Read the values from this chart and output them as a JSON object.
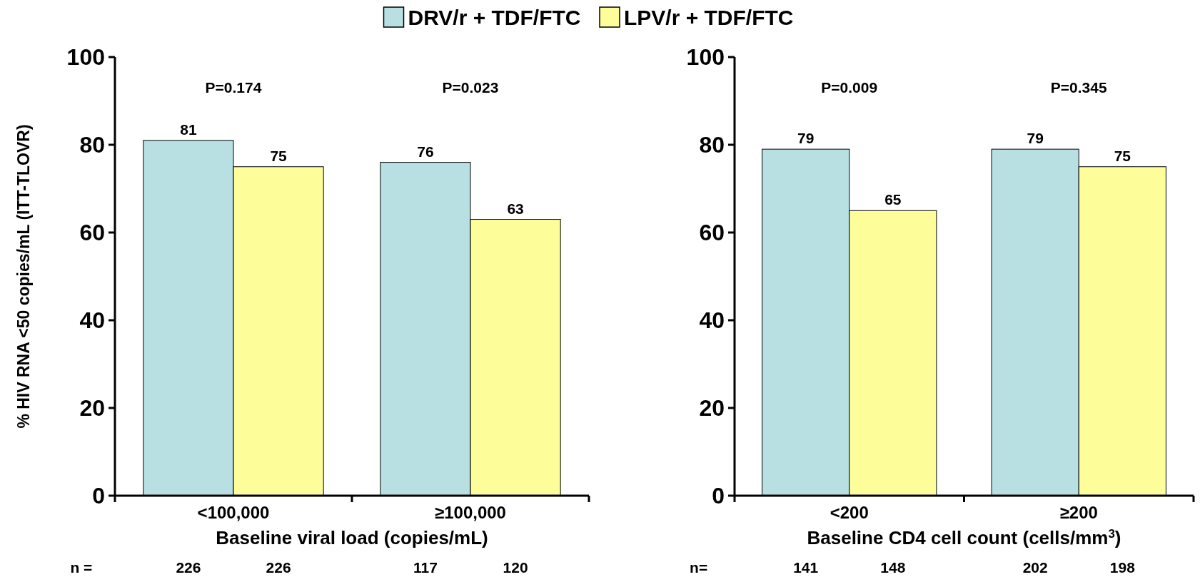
{
  "chart_data": [
    {
      "type": "bar",
      "ylabel": "% HIV RNA <50 copies/mL (ITT-TLOVR)",
      "xlabel": "Baseline viral load (copies/mL)",
      "categories": [
        "<100,000",
        "≥100,000"
      ],
      "ylim": [
        0,
        100
      ],
      "yticks": [
        0,
        20,
        40,
        60,
        80,
        100
      ],
      "data_labels": true,
      "legend": "top",
      "series": [
        {
          "name": "DRV/r + TDF/FTC",
          "color": "#b8e0e2",
          "values": [
            81,
            76
          ]
        },
        {
          "name": "LPV/r + TDF/FTC",
          "color": "#fdfd9a",
          "values": [
            75,
            63
          ]
        }
      ],
      "annotations": [
        "P=0.174",
        "P=0.023",
        "n =",
        "226",
        "226",
        "117",
        "120"
      ]
    },
    {
      "type": "bar",
      "xlabel": "Baseline CD4 cell count (cells/mm$^{3}$)",
      "categories": [
        "<200",
        "≥200"
      ],
      "ylim": [
        0,
        100
      ],
      "yticks": [
        0,
        20,
        40,
        60,
        80,
        100
      ],
      "data_labels": true,
      "series": [
        {
          "color": "#b8e0e2",
          "values": [
            79,
            79
          ]
        },
        {
          "color": "#fdfd9a",
          "values": [
            65,
            75
          ]
        }
      ],
      "annotations": [
        "P=0.009",
        "P=0.345",
        "n=",
        "141",
        "148",
        "202",
        "198"
      ]
    }
  ]
}
